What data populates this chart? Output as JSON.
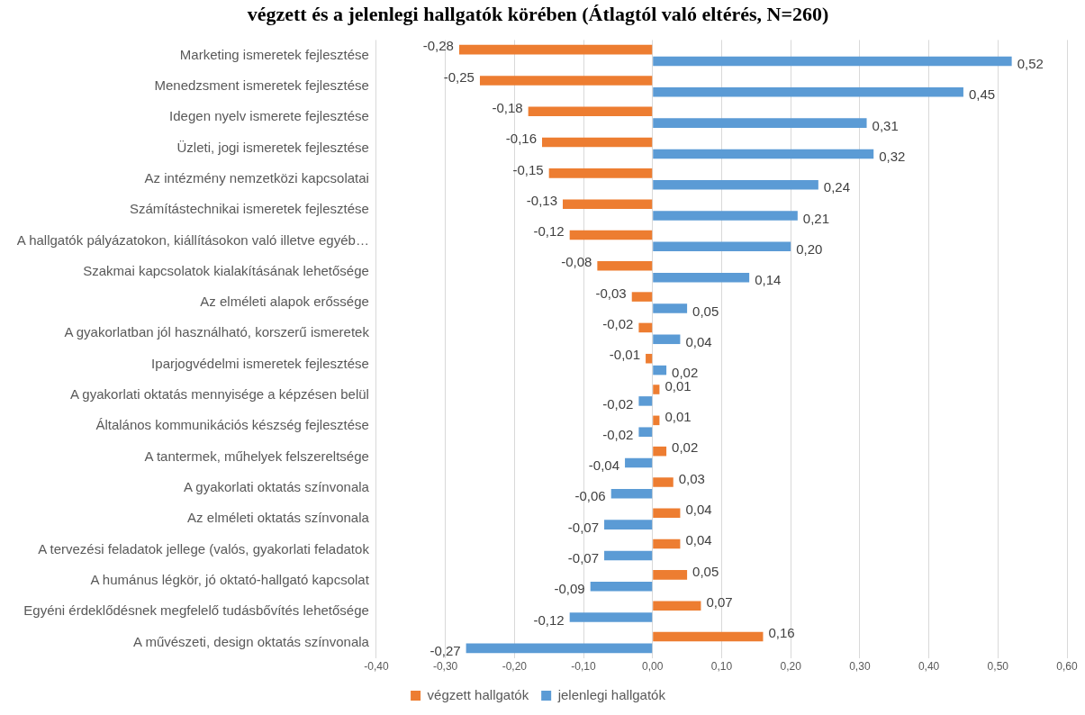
{
  "chart_data": {
    "type": "bar",
    "orientation": "horizontal",
    "title": "végzett és a jelenlegi hallgatók körében (Átlagtól való eltérés, N=260)",
    "categories": [
      "Marketing ismeretek fejlesztése",
      "Menedzsment ismeretek fejlesztése",
      "Idegen nyelv ismerete fejlesztése",
      "Üzleti, jogi ismeretek fejlesztése",
      "Az intézmény nemzetközi kapcsolatai",
      "Számítástechnikai ismeretek fejlesztése",
      "A hallgatók pályázatokon, kiállításokon való illetve egyéb…",
      "Szakmai kapcsolatok kialakításának lehetősége",
      "Az elméleti alapok erőssége",
      "A gyakorlatban jól használható, korszerű ismeretek",
      "Iparjogvédelmi ismeretek fejlesztése",
      "A gyakorlati oktatás mennyisége a képzésen belül",
      "Általános kommunikációs készség fejlesztése",
      "A tantermek, műhelyek felszereltsége",
      "A gyakorlati oktatás színvonala",
      "Az elméleti oktatás színvonala",
      "A tervezési feladatok jellege (valós, gyakorlati feladatok",
      "A humánus légkör, jó oktató-hallgató kapcsolat",
      "Egyéni érdeklődésnek megfelelő tudásbővítés lehetősége",
      "A művészeti, design oktatás színvonala"
    ],
    "series": [
      {
        "name": "végzett hallgatók",
        "color": "#ed7d31",
        "values": [
          -0.28,
          -0.25,
          -0.18,
          -0.16,
          -0.15,
          -0.13,
          -0.12,
          -0.08,
          -0.03,
          -0.02,
          -0.01,
          0.01,
          0.01,
          0.02,
          0.03,
          0.04,
          0.04,
          0.05,
          0.07,
          0.16
        ],
        "value_labels": [
          "-0,28",
          "-0,25",
          "-0,18",
          "-0,16",
          "-0,15",
          "-0,13",
          "-0,12",
          "-0,08",
          "-0,03",
          "-0,02",
          "-0,01",
          "0,01",
          "0,01",
          "0,02",
          "0,03",
          "0,04",
          "0,04",
          "0,05",
          "0,07",
          "0,16"
        ]
      },
      {
        "name": "jelenlegi hallgatók",
        "color": "#5b9bd5",
        "values": [
          0.52,
          0.45,
          0.31,
          0.32,
          0.24,
          0.21,
          0.2,
          0.14,
          0.05,
          0.04,
          0.02,
          -0.02,
          -0.02,
          -0.04,
          -0.06,
          -0.07,
          -0.07,
          -0.09,
          -0.12,
          -0.27
        ],
        "value_labels": [
          "0,52",
          "0,45",
          "0,31",
          "0,32",
          "0,24",
          "0,21",
          "0,20",
          "0,14",
          "0,05",
          "0,04",
          "0,02",
          "-0,02",
          "-0,02",
          "-0,04",
          "-0,06",
          "-0,07",
          "-0,07",
          "-0,09",
          "-0,12",
          "-0,27"
        ]
      }
    ],
    "xlim": [
      -0.4,
      0.6
    ],
    "xticks": [
      {
        "value": -0.4,
        "label": "-0,40"
      },
      {
        "value": -0.3,
        "label": "-0,30"
      },
      {
        "value": -0.2,
        "label": "-0,20"
      },
      {
        "value": -0.1,
        "label": "-0,10"
      },
      {
        "value": 0,
        "label": "0,00"
      },
      {
        "value": 0.1,
        "label": "0,10"
      },
      {
        "value": 0.2,
        "label": "0,20"
      },
      {
        "value": 0.3,
        "label": "0,30"
      },
      {
        "value": 0.4,
        "label": "0,40"
      },
      {
        "value": 0.5,
        "label": "0,50"
      },
      {
        "value": 0.6,
        "label": "0,60"
      }
    ],
    "grid": "x",
    "legend": "bottom"
  }
}
